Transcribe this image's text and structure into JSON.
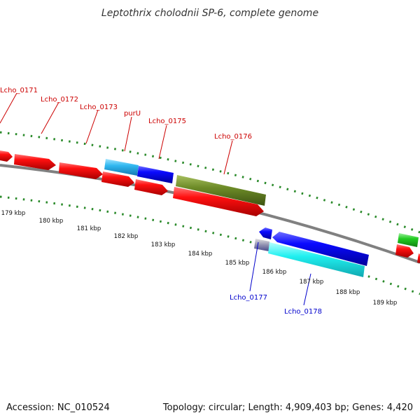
{
  "title": "Leptothrix cholodnii SP-6, complete genome",
  "footer": {
    "accession": "Accession: NC_010524",
    "summary": "Topology: circular; Length: 4,909,403 bp; Genes: 4,420"
  },
  "colors": {
    "forward_label": "#cc0000",
    "reverse_label": "#0000cc",
    "backbone": "#808080",
    "tick_marks": "#2a8a2a"
  },
  "scale_ticks": [
    "179 kbp",
    "180 kbp",
    "181 kbp",
    "182 kbp",
    "183 kbp",
    "184 kbp",
    "185 kbp",
    "186 kbp",
    "187 kbp",
    "188 kbp",
    "189 kbp"
  ],
  "gene_labels": {
    "forward": [
      "Lcho_0171",
      "Lcho_0172",
      "Lcho_0173",
      "purU",
      "Lcho_0175",
      "Lcho_0176"
    ],
    "reverse": [
      "Lcho_0177",
      "Lcho_0178"
    ]
  }
}
